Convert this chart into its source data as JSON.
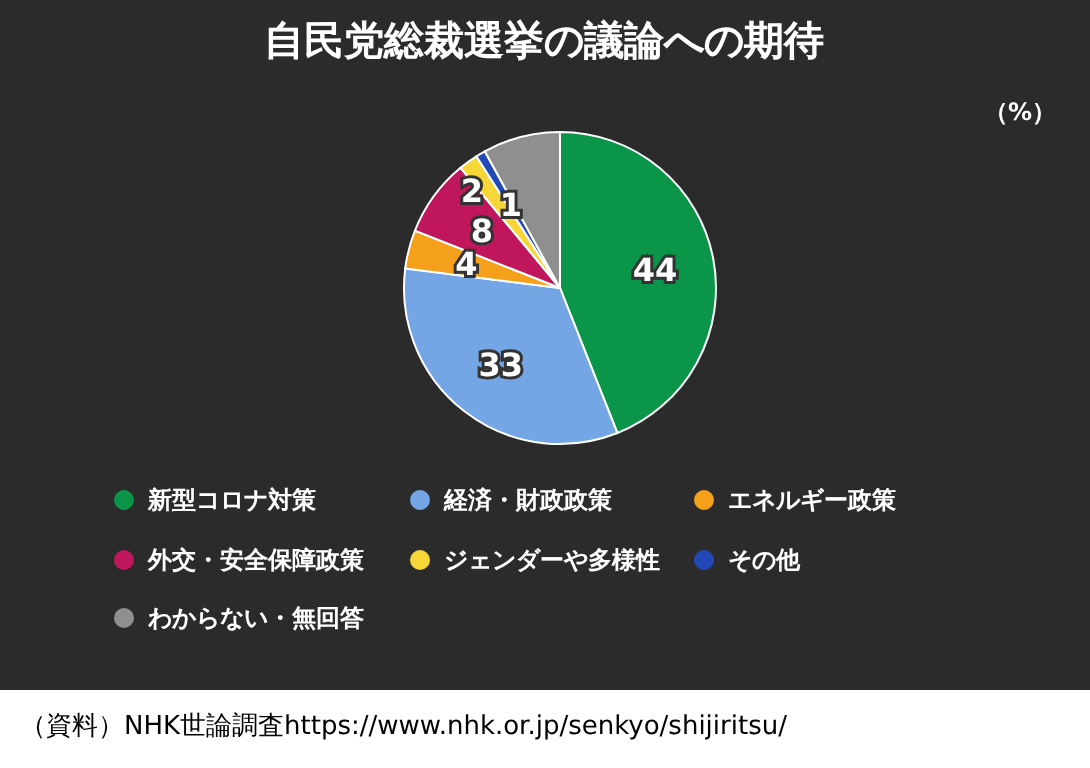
{
  "chart_data": {
    "type": "pie",
    "title": "自民党総裁選挙の議論への期待",
    "categories": [
      "新型コロナ対策",
      "経済・財政政策",
      "エネルギー政策",
      "外交・安全保障政策",
      "ジェンダーや多様性",
      "その他",
      "わからない・無回答"
    ],
    "values": [
      44,
      33,
      4,
      8,
      2,
      1,
      8
    ],
    "colors": [
      "#0a9548",
      "#74a6e6",
      "#f5a01a",
      "#c0175c",
      "#f7d637",
      "#2348b8",
      "#8f8f8f"
    ],
    "value_labels": [
      "44",
      "33",
      "4",
      "8",
      "2",
      "1",
      null
    ],
    "legend": "bottom",
    "annotations": [
      "（%）",
      "（資料）NHK世論調査https://www.nhk.or.jp/senkyo/shijiritsu/"
    ]
  }
}
